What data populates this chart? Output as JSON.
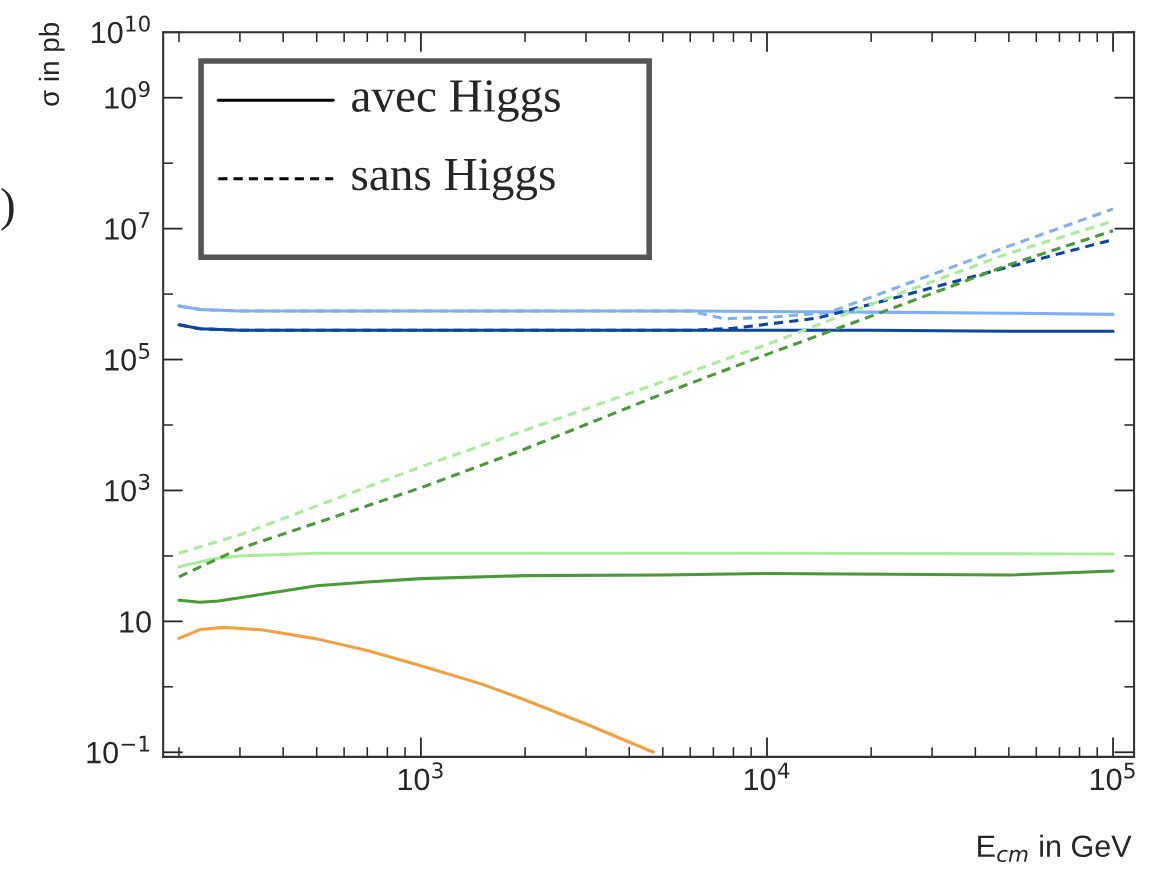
{
  "chart_data": {
    "type": "line",
    "xlabel": "E$_{cm}$ in GeV",
    "ylabel": "σ in pb",
    "log": "xy",
    "grid": false,
    "xlim": [
      180,
      115000
    ],
    "ylim": [
      0.085,
      10000000000
    ],
    "xticks": [
      {
        "value": 1000,
        "label": "10$^{3}$"
      },
      {
        "value": 10000,
        "label": "10$^{4}$"
      },
      {
        "value": 100000,
        "label": "10$^{5}$"
      }
    ],
    "yticks": [
      {
        "value": 0.1,
        "label": "10$^{−1}$"
      },
      {
        "value": 10,
        "label": "10"
      },
      {
        "value": 1000,
        "label": "10$^{3}$"
      },
      {
        "value": 100000,
        "label": "10$^{5}$"
      },
      {
        "value": 10000000,
        "label": "10$^{7}$"
      },
      {
        "value": 1000000000,
        "label": "10$^{9}$"
      },
      {
        "value": 10000000000,
        "label": "10$^{10}$"
      }
    ],
    "annotations": [
      "avec Higgs",
      "sans Higgs",
      ")"
    ],
    "series": [
      {
        "color": "#7fb0f5",
        "line_style": "solid",
        "x": [
          200,
          230,
          300,
          1000,
          6000,
          20000,
          50000,
          100000
        ],
        "values": [
          660000,
          580000,
          550000,
          550000,
          550000,
          530000,
          510000,
          490000
        ]
      },
      {
        "color": "#0a47a0",
        "line_style": "solid",
        "x": [
          200,
          230,
          300,
          1000,
          6000,
          20000,
          50000,
          100000
        ],
        "values": [
          340000,
          295000,
          280000,
          280000,
          280000,
          280000,
          270000,
          270000
        ]
      },
      {
        "color": "#7fb0f5",
        "line_style": "dashed",
        "x": [
          200,
          230,
          300,
          1000,
          6000,
          7500,
          10000,
          15000,
          20000,
          50000,
          100000
        ],
        "values": [
          660000,
          580000,
          550000,
          550000,
          550000,
          420000,
          440000,
          520000,
          900000,
          5400000,
          20000000
        ]
      },
      {
        "color": "#0a47a0",
        "line_style": "dashed",
        "x": [
          200,
          230,
          300,
          1000,
          6000,
          8000,
          14000,
          20000,
          50000,
          100000
        ],
        "values": [
          340000,
          295000,
          280000,
          280000,
          280000,
          300000,
          430000,
          700000,
          2600000,
          6800000
        ]
      },
      {
        "color": "#a8ee98",
        "line_style": "solid",
        "x": [
          200,
          250,
          300,
          500,
          1000,
          10000,
          100000
        ],
        "values": [
          68,
          90,
          100,
          110,
          110,
          110,
          107
        ]
      },
      {
        "color": "#4a9a3a",
        "line_style": "solid",
        "x": [
          200,
          230,
          260,
          300,
          400,
          500,
          700,
          1000,
          2000,
          5000,
          10000,
          50000,
          100000
        ],
        "values": [
          21,
          19.6,
          20.5,
          23,
          29,
          35,
          40,
          45,
          50,
          51,
          54,
          51,
          59
        ]
      },
      {
        "color": "#a8ee98",
        "line_style": "dashed",
        "x": [
          200,
          300,
          500,
          1000,
          2000,
          5000,
          10000,
          20000,
          50000,
          100000
        ],
        "values": [
          110,
          210,
          580,
          2300,
          8300,
          46000,
          170000,
          700000,
          4200000,
          13000000
        ]
      },
      {
        "color": "#4a9a3a",
        "line_style": "dashed",
        "x": [
          200,
          300,
          500,
          1000,
          2000,
          5000,
          10000,
          20000,
          50000,
          100000
        ],
        "values": [
          48,
          130,
          320,
          1100,
          4300,
          30000,
          120000,
          460000,
          2800000,
          9300000
        ]
      },
      {
        "color": "#f5a040",
        "line_style": "solid",
        "x": [
          200,
          230,
          270,
          350,
          500,
          700,
          1000,
          1500,
          2000,
          3000,
          4700
        ],
        "values": [
          5.5,
          7.5,
          8.1,
          7.4,
          5.4,
          3.6,
          2.1,
          1.1,
          0.63,
          0.27,
          0.1
        ]
      }
    ]
  }
}
